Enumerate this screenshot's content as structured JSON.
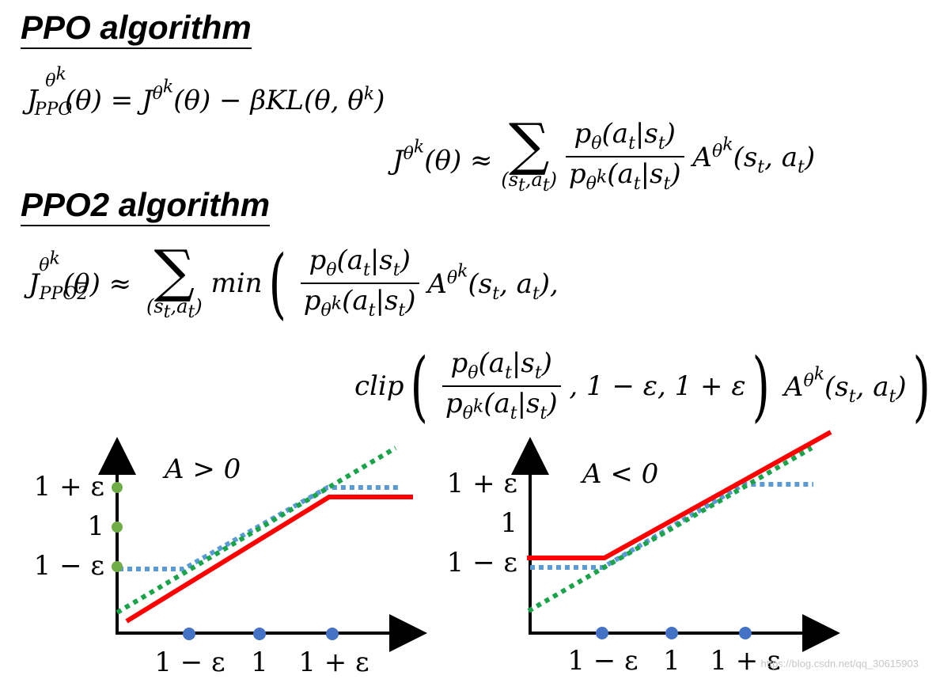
{
  "headings": {
    "ppo": "PPO algorithm",
    "ppo2": "PPO2 algorithm"
  },
  "equations": {
    "ppo_objective": "J_PPO^θ^k(θ) = J^θ^k(θ) − βKL(θ, θ^k)",
    "surrogate": "J^θ^k(θ) ≈ Σ_(s_t,a_t) p_θ(a_t|s_t) / p_θ^k(a_t|s_t) A^θ^k(s_t, a_t)",
    "ppo2_line1": "J_PPO2^θ^k(θ) ≈ Σ_(s_t,a_t) min( p_θ(a_t|s_t) / p_θ^k(a_t|s_t) A^θ^k(s_t, a_t),",
    "ppo2_line2": "clip( p_θ(a_t|s_t) / p_θ^k(a_t|s_t), 1 − ε, 1 + ε ) A^θ^k(s_t, a_t) )"
  },
  "plots": {
    "left": {
      "label": "A > 0",
      "y_ticks": [
        "1 + ε",
        "1",
        "1 − ε"
      ],
      "x_ticks": [
        "1 − ε",
        "1",
        "1 + ε"
      ]
    },
    "right": {
      "label": "A < 0",
      "y_ticks": [
        "1 + ε",
        "1",
        "1 − ε"
      ],
      "x_ticks": [
        "1 − ε",
        "1",
        "1 + ε"
      ]
    }
  },
  "colors": {
    "objective_line": "#ff0000",
    "identity_line": "#1aa34a",
    "clipped_line": "#5b9bd5",
    "x_markers": "#4472c4",
    "y_markers": "#70ad47"
  },
  "watermark": "https://blog.csdn.net/qq_30615903"
}
